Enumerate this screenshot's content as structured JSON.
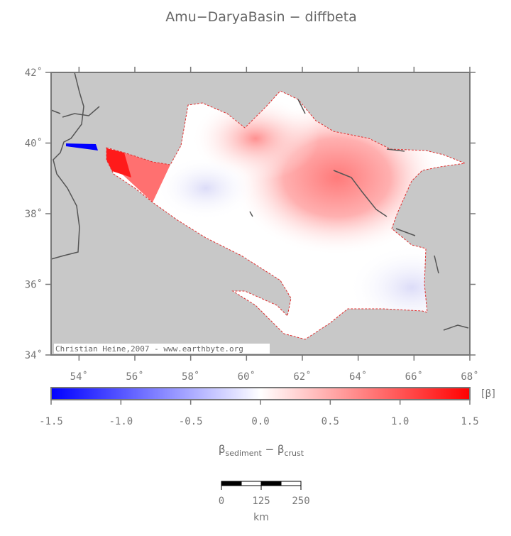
{
  "title": "Amu−DaryaBasin − diffbeta",
  "map": {
    "xlim": [
      53,
      68
    ],
    "ylim": [
      34,
      42
    ],
    "xticks": [
      {
        "value": 54,
        "label": "54˚"
      },
      {
        "value": 56,
        "label": "56˚"
      },
      {
        "value": 58,
        "label": "58˚"
      },
      {
        "value": 60,
        "label": "60˚"
      },
      {
        "value": 62,
        "label": "62˚"
      },
      {
        "value": 64,
        "label": "64˚"
      },
      {
        "value": 66,
        "label": "66˚"
      },
      {
        "value": 68,
        "label": "68˚"
      }
    ],
    "yticks": [
      {
        "value": 34,
        "label": "34˚"
      },
      {
        "value": 36,
        "label": "36˚"
      },
      {
        "value": 38,
        "label": "38˚"
      },
      {
        "value": 40,
        "label": "40˚"
      },
      {
        "value": 42,
        "label": "42˚"
      }
    ],
    "credit": "Christian Heine,2007 - www.earthbyte.org"
  },
  "colorbar": {
    "lim": [
      -1.5,
      1.5
    ],
    "colors": [
      "#0000ff",
      "#ffffff",
      "#ff0000"
    ],
    "ticks": [
      -1.5,
      {
        "value": -1,
        "label": "-1.0"
      },
      -0.5,
      {
        "value": 0,
        "label": "0.0"
      },
      0.5,
      {
        "value": 1,
        "label": "1.0"
      },
      1.5
    ],
    "unit": "[β]",
    "label": [
      "β",
      "sediment",
      " − ",
      "β",
      "crust"
    ]
  },
  "scalebar": {
    "lim": [
      0,
      250
    ],
    "ticks": [
      0,
      125,
      250
    ],
    "unit": "km"
  }
}
